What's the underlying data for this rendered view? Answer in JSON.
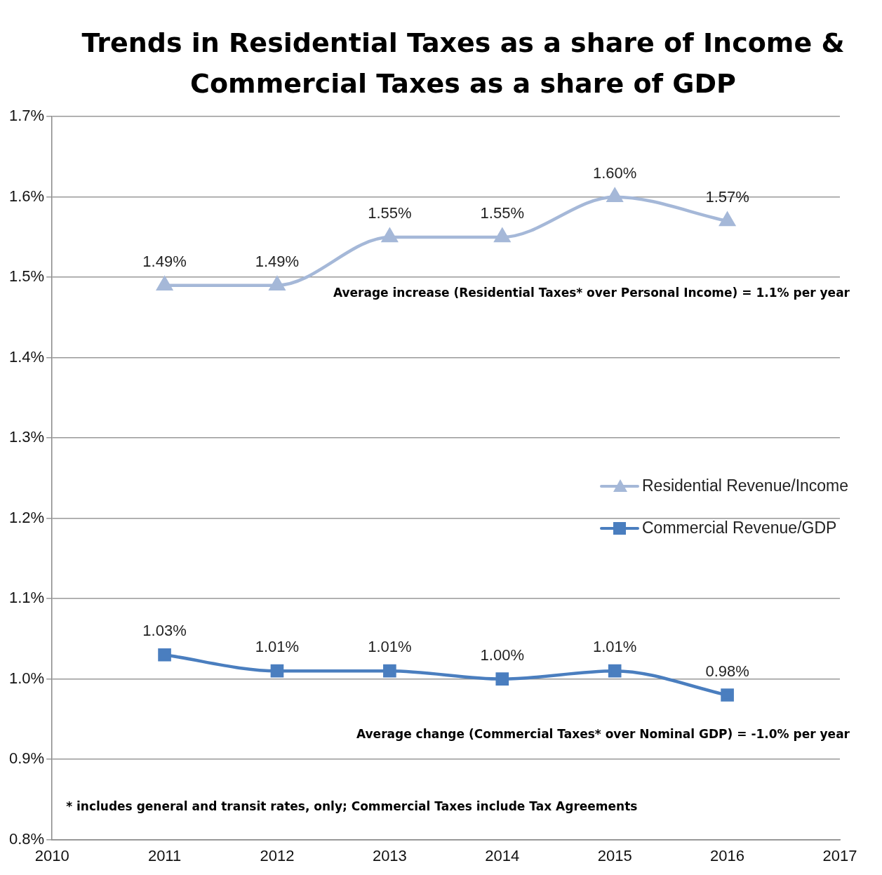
{
  "chart_data": {
    "type": "line",
    "title": "Trends in Residential Taxes as a share of Income & Commercial Taxes as a share of GDP",
    "x": [
      2011,
      2012,
      2013,
      2014,
      2015,
      2016
    ],
    "series": [
      {
        "name": "Residential Revenue/Income",
        "color": "#a5b8d8",
        "marker": "triangle",
        "values": [
          1.49,
          1.49,
          1.55,
          1.55,
          1.6,
          1.57
        ],
        "value_labels": [
          "1.49%",
          "1.49%",
          "1.55%",
          "1.55%",
          "1.60%",
          "1.57%"
        ]
      },
      {
        "name": "Commercial Revenue/GDP",
        "color": "#4a7ebf",
        "marker": "square",
        "values": [
          1.03,
          1.01,
          1.01,
          1.0,
          1.01,
          0.98
        ],
        "value_labels": [
          "1.03%",
          "1.01%",
          "1.01%",
          "1.00%",
          "1.01%",
          "0.98%"
        ]
      }
    ],
    "xlim": [
      2010,
      2017
    ],
    "xticks": [
      2010,
      2011,
      2012,
      2013,
      2014,
      2015,
      2016,
      2017
    ],
    "ylim": [
      0.8,
      1.7
    ],
    "yticks": [
      {
        "value": 0.8,
        "label": "0.8%"
      },
      {
        "value": 0.9,
        "label": "0.9%"
      },
      {
        "value": 1.0,
        "label": "1.0%"
      },
      {
        "value": 1.1,
        "label": "1.1%"
      },
      {
        "value": 1.2,
        "label": "1.2%"
      },
      {
        "value": 1.3,
        "label": "1.3%"
      },
      {
        "value": 1.4,
        "label": "1.4%"
      },
      {
        "value": 1.5,
        "label": "1.5%"
      },
      {
        "value": 1.6,
        "label": "1.6%"
      },
      {
        "value": 1.7,
        "label": "1.7%"
      }
    ],
    "grid": "y",
    "legend": "center right",
    "annotations": [
      "Average increase (Residential Taxes* over Personal Income) = 1.1% per year",
      "Average change (Commercial Taxes* over Nominal GDP) = -1.0% per year",
      "* includes general and transit rates, only; Commercial Taxes include Tax Agreements"
    ]
  }
}
